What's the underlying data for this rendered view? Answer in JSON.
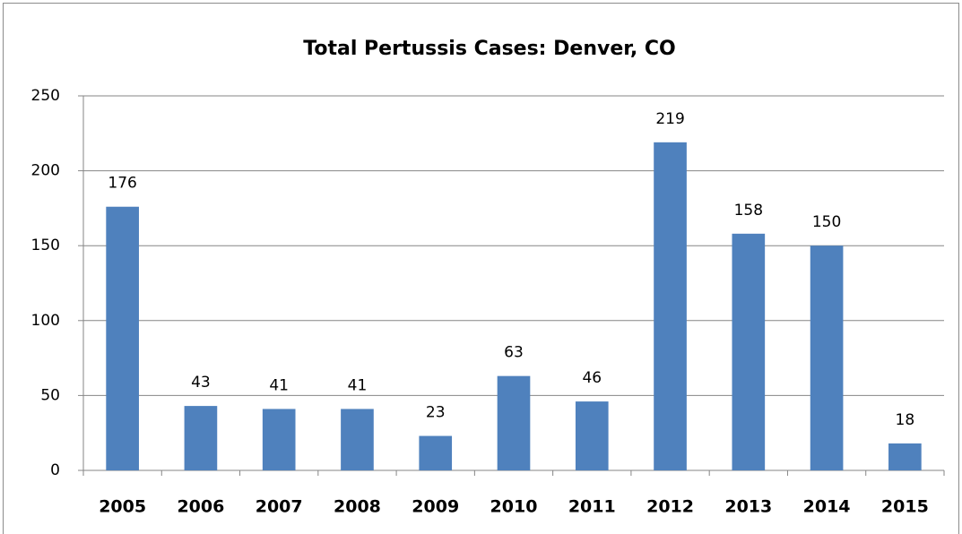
{
  "chart_data": {
    "type": "bar",
    "title": "Total Pertussis Cases: Denver, CO",
    "categories": [
      "2005",
      "2006",
      "2007",
      "2008",
      "2009",
      "2010",
      "2011",
      "2012",
      "2013",
      "2014",
      "2015"
    ],
    "values": [
      176,
      43,
      41,
      41,
      23,
      63,
      46,
      219,
      158,
      150,
      18
    ],
    "color": "#4f81bd",
    "ylim": [
      0,
      250
    ],
    "yticks": [
      0,
      50,
      100,
      150,
      200,
      250
    ],
    "grid": true
  }
}
